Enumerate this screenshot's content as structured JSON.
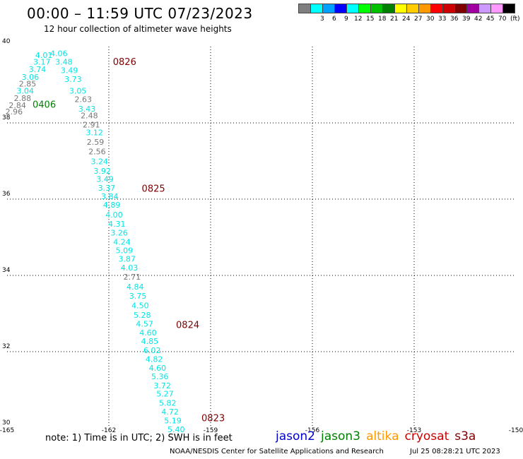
{
  "header": {
    "title": "00:00 – 11:59 UTC 07/23/2023",
    "subtitle": "12 hour collection of altimeter wave heights"
  },
  "colorbar": {
    "colors": [
      "#7f7f7f",
      "#00ffff",
      "#00a0ff",
      "#0000ff",
      "#00ffff",
      "#00ff00",
      "#00c000",
      "#008000",
      "#ffff00",
      "#ffcc00",
      "#ff9900",
      "#ff0000",
      "#cc0000",
      "#800000",
      "#a000a0",
      "#cc99ff",
      "#ff99ff",
      "#000000"
    ],
    "labels": [
      "3",
      "6",
      "9",
      "12",
      "15",
      "18",
      "21",
      "24",
      "27",
      "30",
      "33",
      "36",
      "39",
      "42",
      "45",
      "70"
    ],
    "unit": "(ft)"
  },
  "map": {
    "lat_ticks": [
      "40",
      "38",
      "36",
      "34",
      "32",
      "30"
    ],
    "lon_ticks": [
      "-165",
      "-162",
      "-159",
      "-156",
      "-153",
      "-150"
    ],
    "grid_color": "#000000"
  },
  "chart_data": {
    "type": "scatter",
    "title": "00:00 – 11:59 UTC 07/23/2023",
    "subtitle": "12 hour collection of altimeter wave heights",
    "xlabel": "",
    "ylabel": "",
    "xlim": [
      -165,
      -150
    ],
    "ylim": [
      30,
      40
    ],
    "grid": true,
    "legend_position": "bottom",
    "x_ticks": [
      -165,
      -162,
      -159,
      -156,
      -153,
      -150
    ],
    "y_ticks": [
      30,
      32,
      34,
      36,
      38,
      40
    ],
    "pass_labels": [
      {
        "text": "0826",
        "x": -161.88,
        "y": 39.52,
        "color": "#800000"
      },
      {
        "text": "0406",
        "x": -164.25,
        "y": 38.4,
        "color": "#008000"
      },
      {
        "text": "0825",
        "x": -161.03,
        "y": 36.19,
        "color": "#800000"
      },
      {
        "text": "0824",
        "x": -160.02,
        "y": 32.62,
        "color": "#800000"
      },
      {
        "text": "0823",
        "x": -159.27,
        "y": 30.18,
        "color": "#800000"
      }
    ],
    "points": [
      {
        "v": "4.06",
        "x": -163.73,
        "y": 39.75,
        "c": "#00e5e5"
      },
      {
        "v": "4.01",
        "x": -164.17,
        "y": 39.7,
        "c": "#00e5e5"
      },
      {
        "v": "3.17",
        "x": -164.23,
        "y": 39.53,
        "c": "#00e5e5"
      },
      {
        "v": "3.48",
        "x": -163.58,
        "y": 39.53,
        "c": "#00e5e5"
      },
      {
        "v": "3.74",
        "x": -164.36,
        "y": 39.33,
        "c": "#00e5e5"
      },
      {
        "v": "3.49",
        "x": -163.42,
        "y": 39.31,
        "c": "#00e5e5"
      },
      {
        "v": "3.06",
        "x": -164.57,
        "y": 39.13,
        "c": "#00e5e5"
      },
      {
        "v": "3.73",
        "x": -163.31,
        "y": 39.07,
        "c": "#00e5e5"
      },
      {
        "v": "2.85",
        "x": -164.65,
        "y": 38.95,
        "c": "#777777"
      },
      {
        "v": "3.04",
        "x": -164.72,
        "y": 38.77,
        "c": "#00e5e5"
      },
      {
        "v": "3.05",
        "x": -163.17,
        "y": 38.77,
        "c": "#00e5e5"
      },
      {
        "v": "2.88",
        "x": -164.8,
        "y": 38.57,
        "c": "#777777"
      },
      {
        "v": "2.63",
        "x": -163.01,
        "y": 38.55,
        "c": "#777777"
      },
      {
        "v": "2.84",
        "x": -164.95,
        "y": 38.39,
        "c": "#777777"
      },
      {
        "v": "3.43",
        "x": -162.9,
        "y": 38.3,
        "c": "#00e5e5"
      },
      {
        "v": "2.96",
        "x": -165.05,
        "y": 38.22,
        "c": "#777777"
      },
      {
        "v": "2.48",
        "x": -162.83,
        "y": 38.12,
        "c": "#777777"
      },
      {
        "v": "2.91",
        "x": -162.77,
        "y": 37.88,
        "c": "#777777"
      },
      {
        "v": "3.12",
        "x": -162.68,
        "y": 37.68,
        "c": "#00e5e5"
      },
      {
        "v": "2.59",
        "x": -162.65,
        "y": 37.43,
        "c": "#777777"
      },
      {
        "v": "2.56",
        "x": -162.6,
        "y": 37.18,
        "c": "#777777"
      },
      {
        "v": "3.24",
        "x": -162.53,
        "y": 36.92,
        "c": "#00e5e5"
      },
      {
        "v": "3.92",
        "x": -162.45,
        "y": 36.67,
        "c": "#00e5e5"
      },
      {
        "v": "3.49",
        "x": -162.37,
        "y": 36.45,
        "c": "#00e5e5"
      },
      {
        "v": "3.37",
        "x": -162.32,
        "y": 36.22,
        "c": "#00e5e5"
      },
      {
        "v": "3.84",
        "x": -162.23,
        "y": 36.0,
        "c": "#00e5e5"
      },
      {
        "v": "4.89",
        "x": -162.17,
        "y": 35.78,
        "c": "#00e5e5"
      },
      {
        "v": "4.00",
        "x": -162.1,
        "y": 35.52,
        "c": "#00e5e5"
      },
      {
        "v": "4.31",
        "x": -162.02,
        "y": 35.28,
        "c": "#00e5e5"
      },
      {
        "v": "3.26",
        "x": -161.95,
        "y": 35.05,
        "c": "#00e5e5"
      },
      {
        "v": "4.24",
        "x": -161.87,
        "y": 34.81,
        "c": "#00e5e5"
      },
      {
        "v": "5.09",
        "x": -161.8,
        "y": 34.58,
        "c": "#00e5e5"
      },
      {
        "v": "3.87",
        "x": -161.72,
        "y": 34.36,
        "c": "#00e5e5"
      },
      {
        "v": "4.03",
        "x": -161.65,
        "y": 34.13,
        "c": "#00e5e5"
      },
      {
        "v": "2.71",
        "x": -161.57,
        "y": 33.89,
        "c": "#777777"
      },
      {
        "v": "4.84",
        "x": -161.48,
        "y": 33.63,
        "c": "#00e5e5"
      },
      {
        "v": "3.75",
        "x": -161.4,
        "y": 33.39,
        "c": "#00e5e5"
      },
      {
        "v": "4.50",
        "x": -161.33,
        "y": 33.14,
        "c": "#00e5e5"
      },
      {
        "v": "5.28",
        "x": -161.27,
        "y": 32.89,
        "c": "#00e5e5"
      },
      {
        "v": "4.57",
        "x": -161.2,
        "y": 32.66,
        "c": "#00e5e5"
      },
      {
        "v": "4.60",
        "x": -161.1,
        "y": 32.43,
        "c": "#00e5e5"
      },
      {
        "v": "4.85",
        "x": -161.05,
        "y": 32.2,
        "c": "#00e5e5"
      },
      {
        "v": "6.02",
        "x": -160.98,
        "y": 31.96,
        "c": "#00e5e5"
      },
      {
        "v": "4.82",
        "x": -160.92,
        "y": 31.73,
        "c": "#00e5e5"
      },
      {
        "v": "4.60",
        "x": -160.82,
        "y": 31.5,
        "c": "#00e5e5"
      },
      {
        "v": "5.36",
        "x": -160.75,
        "y": 31.28,
        "c": "#00e5e5"
      },
      {
        "v": "3.72",
        "x": -160.68,
        "y": 31.04,
        "c": "#00e5e5"
      },
      {
        "v": "5.27",
        "x": -160.6,
        "y": 30.82,
        "c": "#00e5e5"
      },
      {
        "v": "5.82",
        "x": -160.52,
        "y": 30.58,
        "c": "#00e5e5"
      },
      {
        "v": "4.72",
        "x": -160.45,
        "y": 30.35,
        "c": "#00e5e5"
      },
      {
        "v": "5.19",
        "x": -160.37,
        "y": 30.12,
        "c": "#00e5e5"
      },
      {
        "v": "5.40",
        "x": -160.27,
        "y": 29.89,
        "c": "#00e5e5"
      }
    ]
  },
  "footer": {
    "note": "note: 1) Time is in UTC; 2) SWH is in feet",
    "satellites": [
      {
        "name": "jason2",
        "color": "#0000cc"
      },
      {
        "name": "jason3",
        "color": "#008000"
      },
      {
        "name": "altika",
        "color": "#ff9900"
      },
      {
        "name": "cryosat",
        "color": "#cc0000"
      },
      {
        "name": "s3a",
        "color": "#800000"
      }
    ],
    "credit": "NOAA/NESDIS Center for Satellite Applications and Research",
    "timestamp": "Jul 25 08:28:21 UTC 2023"
  }
}
